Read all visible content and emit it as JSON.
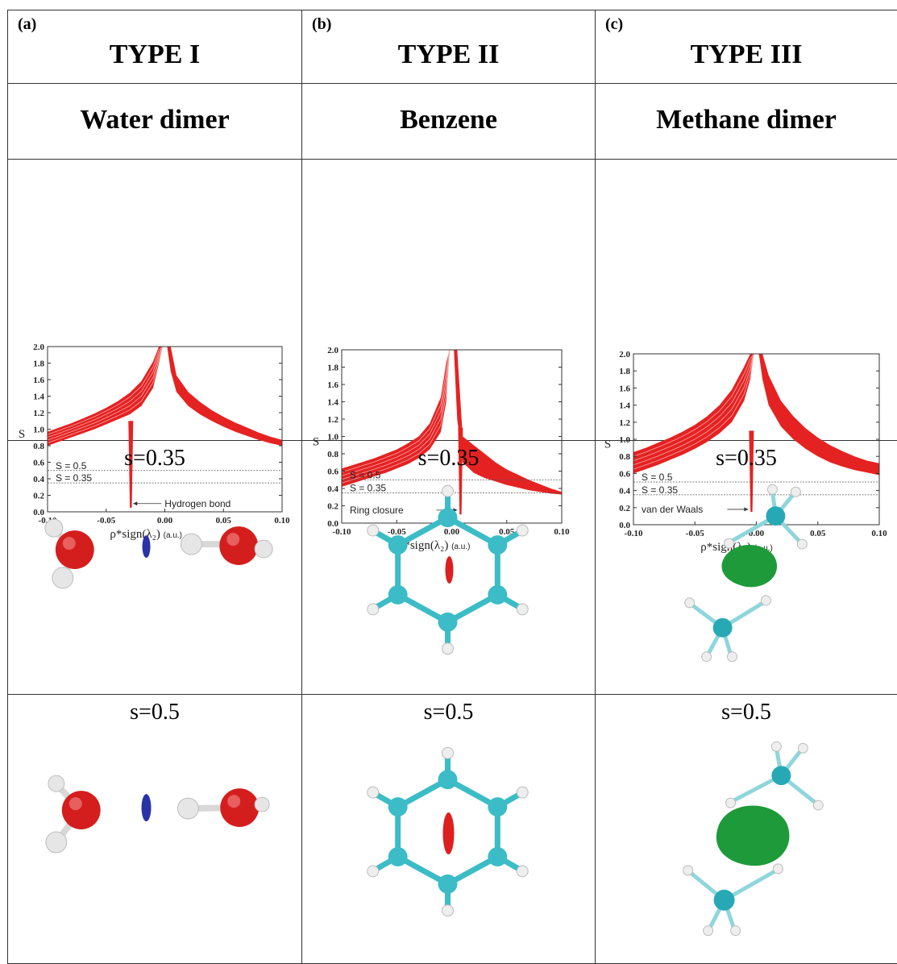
{
  "columns": [
    {
      "panel": "(a)",
      "type": "TYPE I",
      "molecule": "Water dimer"
    },
    {
      "panel": "(b)",
      "type": "TYPE II",
      "molecule": "Benzene"
    },
    {
      "panel": "(c)",
      "type": "TYPE III",
      "molecule": "Methane dimer"
    }
  ],
  "rows": {
    "s1": "s=0.35",
    "s2": "s=0.5"
  },
  "chart_data": [
    {
      "type": "scatter",
      "title": "",
      "xlabel": "ρ*sign(λ₂)",
      "xlabel_unit": "(a.u.)",
      "ylabel": "S",
      "xlim": [
        -0.1,
        0.1
      ],
      "ylim": [
        0.0,
        2.0
      ],
      "xticks": [
        "-0.10",
        "-0.05",
        "0.00",
        "0.05",
        "0.10"
      ],
      "yticks": [
        "0.0",
        "0.2",
        "0.4",
        "0.6",
        "0.8",
        "1.0",
        "1.2",
        "1.4",
        "1.6",
        "1.8",
        "2.0"
      ],
      "color": "#e52222",
      "reference_lines": [
        {
          "label": "S = 0.5",
          "y": 0.5
        },
        {
          "label": "S = 0.35",
          "y": 0.35
        }
      ],
      "annotation": {
        "label": "Hydrogen bond",
        "x": -0.028,
        "y": 0.1
      },
      "spike": {
        "x": -0.029,
        "y_min": 0.05
      },
      "series": [
        {
          "x": [
            -0.1,
            -0.09,
            -0.08,
            -0.07,
            -0.06,
            -0.05,
            -0.04,
            -0.03,
            -0.02,
            -0.01,
            -0.005,
            -0.002
          ],
          "y_low": [
            0.8,
            0.85,
            0.9,
            0.95,
            1.0,
            1.06,
            1.12,
            1.18,
            1.28,
            1.5,
            1.8,
            2.0
          ],
          "y_high": [
            0.97,
            1.02,
            1.07,
            1.13,
            1.19,
            1.26,
            1.34,
            1.44,
            1.58,
            1.82,
            2.0,
            2.0
          ]
        },
        {
          "x": [
            0.002,
            0.005,
            0.01,
            0.02,
            0.03,
            0.04,
            0.05,
            0.06,
            0.07,
            0.08,
            0.09,
            0.1
          ],
          "y_low": [
            2.0,
            1.7,
            1.45,
            1.28,
            1.18,
            1.1,
            1.03,
            0.97,
            0.92,
            0.87,
            0.83,
            0.8
          ],
          "y_high": [
            2.0,
            2.0,
            1.65,
            1.45,
            1.33,
            1.23,
            1.15,
            1.08,
            1.02,
            0.96,
            0.91,
            0.87
          ]
        }
      ]
    },
    {
      "type": "scatter",
      "title": "",
      "xlabel": "ρ*sign(λ₂)",
      "xlabel_unit": "(a.u.)",
      "ylabel": "S",
      "xlim": [
        -0.1,
        0.1
      ],
      "ylim": [
        0.0,
        2.0
      ],
      "xticks": [
        "-0.10",
        "-0.05",
        "0.00",
        "0.05",
        "0.10"
      ],
      "yticks": [
        "0.0",
        "0.2",
        "0.4",
        "0.6",
        "0.8",
        "1.0",
        "1.2",
        "1.4",
        "1.6",
        "1.8",
        "2.0"
      ],
      "color": "#e52222",
      "reference_lines": [
        {
          "label": "S = 0.5",
          "y": 0.5
        },
        {
          "label": "S = 0.35",
          "y": 0.35
        }
      ],
      "annotation": {
        "label": "Ring closure",
        "x": 0.008,
        "y": 0.15
      },
      "spike": {
        "x": 0.008,
        "y_min": 0.1
      },
      "series": [
        {
          "x": [
            -0.1,
            -0.09,
            -0.08,
            -0.07,
            -0.06,
            -0.05,
            -0.04,
            -0.03,
            -0.02,
            -0.01,
            -0.005,
            -0.002
          ],
          "y_low": [
            0.42,
            0.46,
            0.5,
            0.54,
            0.58,
            0.63,
            0.68,
            0.75,
            0.85,
            1.05,
            1.4,
            2.0
          ],
          "y_high": [
            0.63,
            0.67,
            0.71,
            0.75,
            0.8,
            0.85,
            0.92,
            1.0,
            1.15,
            1.45,
            1.85,
            2.0
          ]
        },
        {
          "x": [
            0.002,
            0.005,
            0.01,
            0.02,
            0.03,
            0.04,
            0.05,
            0.06,
            0.07,
            0.08,
            0.09,
            0.1
          ],
          "y_low": [
            2.0,
            1.2,
            0.7,
            0.58,
            0.52,
            0.48,
            0.44,
            0.41,
            0.38,
            0.36,
            0.34,
            0.33
          ],
          "y_high": [
            2.0,
            2.0,
            1.0,
            0.9,
            0.8,
            0.7,
            0.62,
            0.56,
            0.5,
            0.45,
            0.4,
            0.36
          ]
        }
      ]
    },
    {
      "type": "scatter",
      "title": "",
      "xlabel": "ρ*sign(λ₂)",
      "xlabel_unit": "(a.u.)",
      "ylabel": "S",
      "xlim": [
        -0.1,
        0.1
      ],
      "ylim": [
        0.0,
        2.0
      ],
      "xticks": [
        "-0.10",
        "-0.05",
        "0.00",
        "0.05",
        "0.10"
      ],
      "yticks": [
        "0.0",
        "0.2",
        "0.4",
        "0.6",
        "0.8",
        "1.0",
        "1.2",
        "1.4",
        "1.6",
        "1.8",
        "2.0"
      ],
      "color": "#e52222",
      "reference_lines": [
        {
          "label": "S = 0.5",
          "y": 0.5
        },
        {
          "label": "S = 0.35",
          "y": 0.35
        }
      ],
      "annotation": {
        "label": "van der Waals",
        "x": -0.004,
        "y": 0.18
      },
      "spike": {
        "x": -0.004,
        "y_min": 0.15
      },
      "series": [
        {
          "x": [
            -0.1,
            -0.09,
            -0.08,
            -0.07,
            -0.06,
            -0.05,
            -0.04,
            -0.03,
            -0.02,
            -0.01,
            -0.005,
            -0.002
          ],
          "y_low": [
            0.6,
            0.65,
            0.7,
            0.76,
            0.82,
            0.89,
            0.97,
            1.07,
            1.2,
            1.45,
            1.7,
            2.0
          ],
          "y_high": [
            0.85,
            0.9,
            0.96,
            1.02,
            1.09,
            1.17,
            1.27,
            1.4,
            1.58,
            1.85,
            2.0,
            2.0
          ]
        },
        {
          "x": [
            0.002,
            0.005,
            0.01,
            0.02,
            0.03,
            0.04,
            0.05,
            0.06,
            0.07,
            0.08,
            0.09,
            0.1
          ],
          "y_low": [
            2.0,
            1.7,
            1.4,
            1.15,
            1.0,
            0.89,
            0.8,
            0.73,
            0.68,
            0.64,
            0.61,
            0.58
          ],
          "y_high": [
            2.0,
            2.0,
            1.75,
            1.45,
            1.27,
            1.13,
            1.02,
            0.93,
            0.86,
            0.8,
            0.75,
            0.72
          ]
        }
      ]
    }
  ]
}
